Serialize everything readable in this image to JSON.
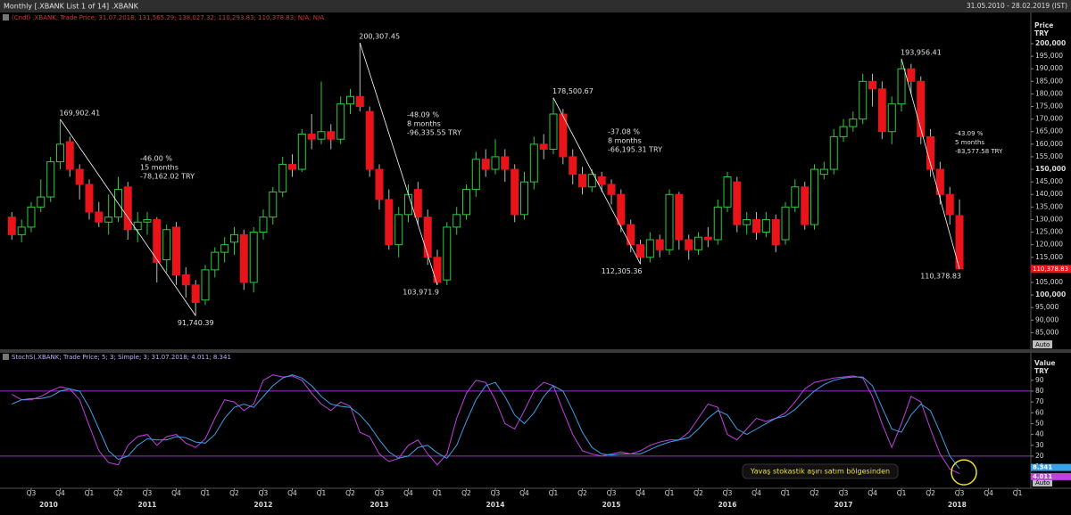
{
  "header": {
    "title": "Monthly [.XBANK List 1 of 14] .XBANK",
    "range": "31.05.2010 - 28.02.2019 (IST)"
  },
  "chart_data": [
    {
      "type": "candlestick",
      "legend": "(Cndl) .XBANK; Trade Price; 31.07.2018; 131,565.29; 138,027.32; 110,293.83; 110,378.83; N/A; N/A",
      "y_label": "Price",
      "y_unit": "TRY",
      "auto": "Auto",
      "up_color": "#2ecc40",
      "down_color": "#e8141a",
      "x": [
        2010.333,
        2010.417,
        2010.5,
        2010.583,
        2010.667,
        2010.75,
        2010.833,
        2010.917,
        2011,
        2011.083,
        2011.167,
        2011.25,
        2011.333,
        2011.417,
        2011.5,
        2011.583,
        2011.667,
        2011.75,
        2011.833,
        2011.917,
        2012,
        2012.083,
        2012.167,
        2012.25,
        2012.333,
        2012.417,
        2012.5,
        2012.583,
        2012.667,
        2012.75,
        2012.833,
        2012.917,
        2013,
        2013.083,
        2013.167,
        2013.25,
        2013.333,
        2013.417,
        2013.5,
        2013.583,
        2013.667,
        2013.75,
        2013.833,
        2013.917,
        2014,
        2014.083,
        2014.167,
        2014.25,
        2014.333,
        2014.417,
        2014.5,
        2014.583,
        2014.667,
        2014.75,
        2014.833,
        2014.917,
        2015,
        2015.083,
        2015.167,
        2015.25,
        2015.333,
        2015.417,
        2015.5,
        2015.583,
        2015.667,
        2015.75,
        2015.833,
        2015.917,
        2016,
        2016.083,
        2016.167,
        2016.25,
        2016.333,
        2016.417,
        2016.5,
        2016.583,
        2016.667,
        2016.75,
        2016.833,
        2016.917,
        2017,
        2017.083,
        2017.167,
        2017.25,
        2017.333,
        2017.417,
        2017.5,
        2017.583,
        2017.667,
        2017.75,
        2017.833,
        2017.917,
        2018,
        2018.083,
        2018.167,
        2018.25,
        2018.333,
        2018.417,
        2018.5
      ],
      "open": [
        131000,
        124000,
        127000,
        135000,
        139000,
        153000,
        161000,
        150000,
        144000,
        133000,
        129000,
        131000,
        143000,
        126000,
        129000,
        130000,
        114000,
        127000,
        108000,
        104000,
        98000,
        110000,
        117000,
        121000,
        124000,
        105000,
        125000,
        131000,
        141000,
        152000,
        150000,
        164000,
        162000,
        165000,
        162000,
        176000,
        179000,
        173000,
        150000,
        138000,
        120000,
        132000,
        142000,
        131000,
        115000,
        106000,
        127000,
        132000,
        142000,
        154000,
        150000,
        155000,
        150000,
        132000,
        145000,
        160000,
        158000,
        172000,
        155000,
        148000,
        143000,
        147000,
        144000,
        140000,
        128000,
        120000,
        115000,
        122000,
        118000,
        140000,
        122000,
        118000,
        123000,
        122000,
        135000,
        145000,
        128000,
        130000,
        125000,
        130000,
        122000,
        135000,
        143000,
        128000,
        148000,
        150000,
        163000,
        167000,
        170000,
        185000,
        182000,
        165000,
        176000,
        190000,
        185000,
        163000,
        150000,
        140000,
        131565.29
      ],
      "high": [
        133000,
        130000,
        137000,
        146000,
        155000,
        169902.41,
        163000,
        152000,
        146000,
        137000,
        140000,
        147000,
        145000,
        133000,
        133000,
        131000,
        128000,
        129000,
        111000,
        106000,
        112000,
        119000,
        123000,
        127000,
        126000,
        127000,
        134000,
        143000,
        155000,
        156000,
        166000,
        172000,
        185000,
        168000,
        179000,
        182000,
        200307.45,
        175000,
        152000,
        142000,
        135000,
        144000,
        145000,
        134000,
        118000,
        129000,
        135000,
        144000,
        157000,
        158000,
        162000,
        158000,
        152000,
        149000,
        163000,
        164000,
        178500.67,
        174000,
        158000,
        151000,
        150000,
        149000,
        146000,
        142000,
        130000,
        122000,
        125000,
        124000,
        142000,
        141000,
        124000,
        125000,
        127000,
        138000,
        149000,
        147000,
        133000,
        133000,
        133000,
        132000,
        137000,
        146000,
        145000,
        152000,
        153000,
        166000,
        170000,
        173000,
        188000,
        188000,
        185000,
        179000,
        193956.41,
        192000,
        187000,
        166000,
        153000,
        143000,
        138027.32
      ],
      "low": [
        122000,
        121000,
        125000,
        133000,
        137000,
        150000,
        147000,
        138000,
        130000,
        127000,
        124000,
        129000,
        122000,
        121000,
        124000,
        105000,
        109000,
        104000,
        99000,
        91740.39,
        96000,
        107000,
        113000,
        116000,
        102000,
        101000,
        122000,
        128000,
        139000,
        147000,
        149000,
        158000,
        160000,
        158000,
        160000,
        172000,
        173000,
        147000,
        134000,
        118000,
        115000,
        129000,
        128000,
        112000,
        103971.9,
        104000,
        124000,
        130000,
        139000,
        147000,
        148000,
        145000,
        129000,
        130000,
        142000,
        154000,
        156000,
        152000,
        144000,
        140000,
        141000,
        141000,
        136000,
        125000,
        117000,
        112305.36,
        113000,
        115000,
        116000,
        118000,
        114000,
        116000,
        119000,
        120000,
        133000,
        125000,
        124000,
        122000,
        123000,
        117000,
        120000,
        133000,
        126000,
        126000,
        146000,
        148000,
        161000,
        165000,
        168000,
        175000,
        162000,
        160000,
        173000,
        180000,
        160000,
        147000,
        136000,
        128000,
        110293.83
      ],
      "close": [
        124000,
        127000,
        135000,
        139000,
        153000,
        160000,
        150000,
        144000,
        133000,
        129000,
        131000,
        142000,
        126000,
        129000,
        130000,
        113000,
        126000,
        108000,
        104000,
        97000,
        110000,
        117000,
        120000,
        124000,
        105000,
        125000,
        131000,
        141000,
        152000,
        150000,
        164000,
        162000,
        165000,
        162000,
        176000,
        179000,
        175000,
        150000,
        138000,
        120000,
        132000,
        140000,
        131000,
        115000,
        105000,
        127000,
        132000,
        142000,
        154000,
        150000,
        155000,
        150000,
        132000,
        145000,
        160000,
        158000,
        172000,
        155000,
        148000,
        143000,
        148000,
        144000,
        140000,
        128000,
        120000,
        115000,
        122000,
        118000,
        140000,
        122000,
        118000,
        123000,
        122000,
        135000,
        147000,
        128000,
        130000,
        125000,
        130000,
        120000,
        135000,
        143000,
        128000,
        150000,
        150000,
        163000,
        167000,
        170000,
        185000,
        182000,
        165000,
        176000,
        190000,
        185000,
        163000,
        150000,
        140000,
        132000,
        110378.83
      ],
      "ylim": [
        78400,
        211700
      ],
      "yticks": [
        {
          "value": 85000,
          "label": "85,000"
        },
        {
          "value": 90000,
          "label": "90,000"
        },
        {
          "value": 95000,
          "label": "95,000"
        },
        {
          "value": 100000,
          "label": "100,000"
        },
        {
          "value": 105000,
          "label": "105,000"
        },
        {
          "value": 110000,
          "label": "110,000"
        },
        {
          "value": 115000,
          "label": "115,000"
        },
        {
          "value": 120000,
          "label": "120,000"
        },
        {
          "value": 125000,
          "label": "125,000"
        },
        {
          "value": 130000,
          "label": "130,000"
        },
        {
          "value": 135000,
          "label": "135,000"
        },
        {
          "value": 140000,
          "label": "140,000"
        },
        {
          "value": 145000,
          "label": "145,000"
        },
        {
          "value": 150000,
          "label": "150,000"
        },
        {
          "value": 155000,
          "label": "155,000"
        },
        {
          "value": 160000,
          "label": "160,000"
        },
        {
          "value": 165000,
          "label": "165,000"
        },
        {
          "value": 170000,
          "label": "170,000"
        },
        {
          "value": 175000,
          "label": "175,000"
        },
        {
          "value": 180000,
          "label": "180,000"
        },
        {
          "value": 185000,
          "label": "185,000"
        },
        {
          "value": 190000,
          "label": "190,000"
        },
        {
          "value": 195000,
          "label": "195,000"
        },
        {
          "value": 200000,
          "label": "200,000"
        }
      ],
      "annotations": [
        {
          "x": 2010.75,
          "value": 169902.41,
          "label": "169,902.41"
        },
        {
          "x": 2011.917,
          "value": 91740.39,
          "label": "91,740.39"
        },
        {
          "x": 2013.333,
          "value": 200307.45,
          "label": "200,307.45"
        },
        {
          "x": 2014,
          "value": 103971.9,
          "label": "103,971.9"
        },
        {
          "x": 2015,
          "value": 178500.67,
          "label": "178,500.67"
        },
        {
          "x": 2015.75,
          "value": 112305.36,
          "label": "112,305.36"
        },
        {
          "x": 2018,
          "value": 193956.41,
          "label": "193,956.41"
        },
        {
          "x": 2018.5,
          "value": 110378.83,
          "label": "110,378.83"
        }
      ],
      "drops": [
        {
          "lines": [
            "-46.00 %",
            "15 months",
            "-78,162.02 TRY"
          ]
        },
        {
          "lines": [
            "-48.09 %",
            "8 months",
            "-96,335.55 TRY"
          ]
        },
        {
          "lines": [
            "-37.08 %",
            "8 months",
            "-66,195.31 TRY"
          ]
        },
        {
          "lines": [
            "-43.09 %",
            "5 months",
            "-83,577.58 TRY"
          ]
        }
      ]
    },
    {
      "type": "line",
      "legend": "StochS(.XBANK; Trade Price; 5; 3; Simple; 3; 31.07.2018; 4.011; 8.341",
      "y_label": "Value",
      "y_unit": "TRY",
      "auto": "Auto",
      "series": [
        {
          "color": "#c040e0",
          "values": [
            77,
            72,
            72,
            75,
            80,
            84,
            82,
            72,
            48,
            25,
            14,
            12,
            30,
            38,
            40,
            30,
            38,
            40,
            32,
            28,
            36,
            55,
            72,
            70,
            62,
            68,
            90,
            95,
            93,
            94,
            90,
            78,
            68,
            62,
            70,
            66,
            42,
            38,
            22,
            15,
            18,
            30,
            35,
            22,
            12,
            22,
            55,
            78,
            90,
            88,
            72,
            50,
            45,
            62,
            80,
            88,
            85,
            62,
            40,
            25,
            22,
            20,
            22,
            24,
            22,
            25,
            30,
            33,
            35,
            35,
            42,
            55,
            68,
            65,
            40,
            35,
            45,
            55,
            52,
            55,
            60,
            70,
            82,
            88,
            90,
            92,
            93,
            94,
            92,
            75,
            50,
            28,
            50,
            75,
            70,
            45,
            22,
            8,
            4.011
          ]
        },
        {
          "color": "#3aa0e8",
          "values": [
            68,
            72,
            73,
            73,
            75,
            80,
            82,
            80,
            65,
            45,
            25,
            17,
            20,
            30,
            36,
            35,
            35,
            38,
            37,
            33,
            32,
            40,
            55,
            65,
            68,
            65,
            75,
            85,
            92,
            95,
            92,
            85,
            75,
            68,
            66,
            65,
            58,
            48,
            35,
            24,
            18,
            20,
            28,
            30,
            23,
            18,
            30,
            52,
            72,
            85,
            88,
            75,
            58,
            50,
            60,
            75,
            85,
            80,
            62,
            42,
            28,
            22,
            21,
            22,
            22,
            22,
            26,
            30,
            33,
            35,
            37,
            45,
            55,
            62,
            58,
            45,
            40,
            45,
            50,
            55,
            57,
            63,
            72,
            80,
            86,
            90,
            92,
            93,
            93,
            85,
            65,
            45,
            42,
            58,
            68,
            62,
            42,
            20,
            8.341
          ]
        }
      ],
      "levels": [
        80,
        20
      ],
      "level_color": "#9b30d0",
      "ylim": [
        -8,
        112
      ],
      "yticks": [
        10,
        20,
        30,
        40,
        50,
        60,
        70,
        80,
        90
      ],
      "note": "Yavaş stokastik aşırı satım bölgesinden",
      "xlim": [
        2010.231,
        2019.115
      ],
      "xticks": [
        {
          "value": 2010.5,
          "label": "Q3"
        },
        {
          "value": 2010.75,
          "label": "Q4"
        },
        {
          "value": 2011,
          "label": "Q1"
        },
        {
          "value": 2011.25,
          "label": "Q2"
        },
        {
          "value": 2011.5,
          "label": "Q3"
        },
        {
          "value": 2011.75,
          "label": "Q4"
        },
        {
          "value": 2012,
          "label": "Q1"
        },
        {
          "value": 2012.25,
          "label": "Q2"
        },
        {
          "value": 2012.5,
          "label": "Q3"
        },
        {
          "value": 2012.75,
          "label": "Q4"
        },
        {
          "value": 2013,
          "label": "Q1"
        },
        {
          "value": 2013.25,
          "label": "Q2"
        },
        {
          "value": 2013.5,
          "label": "Q3"
        },
        {
          "value": 2013.75,
          "label": "Q4"
        },
        {
          "value": 2014,
          "label": "Q1"
        },
        {
          "value": 2014.25,
          "label": "Q2"
        },
        {
          "value": 2014.5,
          "label": "Q3"
        },
        {
          "value": 2014.75,
          "label": "Q4"
        },
        {
          "value": 2015,
          "label": "Q1"
        },
        {
          "value": 2015.25,
          "label": "Q2"
        },
        {
          "value": 2015.5,
          "label": "Q3"
        },
        {
          "value": 2015.75,
          "label": "Q4"
        },
        {
          "value": 2016,
          "label": "Q1"
        },
        {
          "value": 2016.25,
          "label": "Q2"
        },
        {
          "value": 2016.5,
          "label": "Q3"
        },
        {
          "value": 2016.75,
          "label": "Q4"
        },
        {
          "value": 2017,
          "label": "Q1"
        },
        {
          "value": 2017.25,
          "label": "Q2"
        },
        {
          "value": 2017.5,
          "label": "Q3"
        },
        {
          "value": 2017.75,
          "label": "Q4"
        },
        {
          "value": 2018,
          "label": "Q1"
        },
        {
          "value": 2018.25,
          "label": "Q2"
        },
        {
          "value": 2018.5,
          "label": "Q3"
        },
        {
          "value": 2018.75,
          "label": "Q4"
        },
        {
          "value": 2019,
          "label": "Q1"
        }
      ],
      "year_ticks": [
        {
          "value": 2010.65,
          "label": "2010"
        },
        {
          "value": 2011.5,
          "label": "2011"
        },
        {
          "value": 2012.5,
          "label": "2012"
        },
        {
          "value": 2013.5,
          "label": "2013"
        },
        {
          "value": 2014.5,
          "label": "2014"
        },
        {
          "value": 2015.5,
          "label": "2015"
        },
        {
          "value": 2016.5,
          "label": "2016"
        },
        {
          "value": 2017.5,
          "label": "2017"
        },
        {
          "value": 2018.48,
          "label": "2018"
        }
      ]
    }
  ]
}
